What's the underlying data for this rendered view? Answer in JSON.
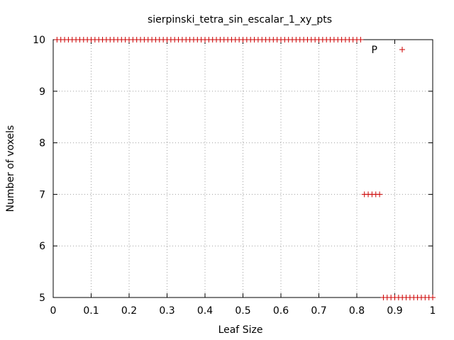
{
  "chart_data": {
    "type": "scatter",
    "title": "sierpinski_tetra_sin_escalar_1_xy_pts",
    "xlabel": "Leaf Size",
    "ylabel": "Number of voxels",
    "xlim": [
      0,
      1
    ],
    "ylim": [
      5,
      10
    ],
    "x_ticks": [
      "0",
      "0.1",
      "0.2",
      "0.3",
      "0.4",
      "0.5",
      "0.6",
      "0.7",
      "0.8",
      "0.9",
      "1"
    ],
    "y_ticks": [
      "5",
      "6",
      "7",
      "8",
      "9",
      "10"
    ],
    "grid": true,
    "legend_position": "top-right",
    "series": [
      {
        "name": "P",
        "color": "#cc0000",
        "marker": "plus",
        "points": [
          [
            0.01,
            10
          ],
          [
            0.02,
            10
          ],
          [
            0.03,
            10
          ],
          [
            0.04,
            10
          ],
          [
            0.05,
            10
          ],
          [
            0.06,
            10
          ],
          [
            0.07,
            10
          ],
          [
            0.08,
            10
          ],
          [
            0.09,
            10
          ],
          [
            0.1,
            10
          ],
          [
            0.11,
            10
          ],
          [
            0.12,
            10
          ],
          [
            0.13,
            10
          ],
          [
            0.14,
            10
          ],
          [
            0.15,
            10
          ],
          [
            0.16,
            10
          ],
          [
            0.17,
            10
          ],
          [
            0.18,
            10
          ],
          [
            0.19,
            10
          ],
          [
            0.2,
            10
          ],
          [
            0.21,
            10
          ],
          [
            0.22,
            10
          ],
          [
            0.23,
            10
          ],
          [
            0.24,
            10
          ],
          [
            0.25,
            10
          ],
          [
            0.26,
            10
          ],
          [
            0.27,
            10
          ],
          [
            0.28,
            10
          ],
          [
            0.29,
            10
          ],
          [
            0.3,
            10
          ],
          [
            0.31,
            10
          ],
          [
            0.32,
            10
          ],
          [
            0.33,
            10
          ],
          [
            0.34,
            10
          ],
          [
            0.35,
            10
          ],
          [
            0.36,
            10
          ],
          [
            0.37,
            10
          ],
          [
            0.38,
            10
          ],
          [
            0.39,
            10
          ],
          [
            0.4,
            10
          ],
          [
            0.41,
            10
          ],
          [
            0.42,
            10
          ],
          [
            0.43,
            10
          ],
          [
            0.44,
            10
          ],
          [
            0.45,
            10
          ],
          [
            0.46,
            10
          ],
          [
            0.47,
            10
          ],
          [
            0.48,
            10
          ],
          [
            0.49,
            10
          ],
          [
            0.5,
            10
          ],
          [
            0.51,
            10
          ],
          [
            0.52,
            10
          ],
          [
            0.53,
            10
          ],
          [
            0.54,
            10
          ],
          [
            0.55,
            10
          ],
          [
            0.56,
            10
          ],
          [
            0.57,
            10
          ],
          [
            0.58,
            10
          ],
          [
            0.59,
            10
          ],
          [
            0.6,
            10
          ],
          [
            0.61,
            10
          ],
          [
            0.62,
            10
          ],
          [
            0.63,
            10
          ],
          [
            0.64,
            10
          ],
          [
            0.65,
            10
          ],
          [
            0.66,
            10
          ],
          [
            0.67,
            10
          ],
          [
            0.68,
            10
          ],
          [
            0.69,
            10
          ],
          [
            0.7,
            10
          ],
          [
            0.71,
            10
          ],
          [
            0.72,
            10
          ],
          [
            0.73,
            10
          ],
          [
            0.74,
            10
          ],
          [
            0.75,
            10
          ],
          [
            0.76,
            10
          ],
          [
            0.77,
            10
          ],
          [
            0.78,
            10
          ],
          [
            0.79,
            10
          ],
          [
            0.8,
            10
          ],
          [
            0.81,
            10
          ],
          [
            0.82,
            7
          ],
          [
            0.83,
            7
          ],
          [
            0.84,
            7
          ],
          [
            0.85,
            7
          ],
          [
            0.86,
            7
          ],
          [
            0.87,
            5
          ],
          [
            0.88,
            5
          ],
          [
            0.89,
            5
          ],
          [
            0.9,
            5
          ],
          [
            0.91,
            5
          ],
          [
            0.92,
            5
          ],
          [
            0.93,
            5
          ],
          [
            0.94,
            5
          ],
          [
            0.95,
            5
          ],
          [
            0.96,
            5
          ],
          [
            0.97,
            5
          ],
          [
            0.98,
            5
          ],
          [
            0.99,
            5
          ],
          [
            1.0,
            5
          ]
        ]
      }
    ]
  }
}
